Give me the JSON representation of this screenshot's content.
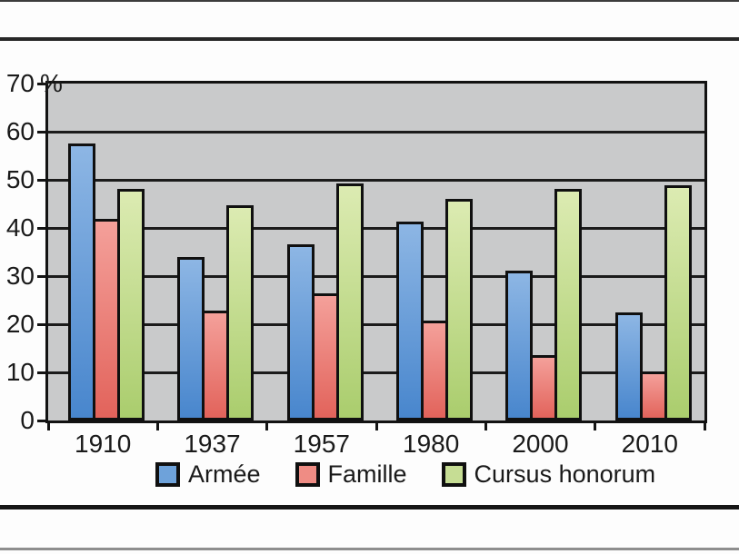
{
  "chart_data": {
    "type": "bar",
    "categories": [
      "1910",
      "1937",
      "1957",
      "1980",
      "2000",
      "2010"
    ],
    "series": [
      {
        "name": "Armée",
        "legend_fill": "#6ea2da",
        "fill_light": "#8db6e4",
        "fill_dark": "#4886cd",
        "values": [
          57.5,
          34.0,
          36.6,
          41.3,
          31.1,
          22.4
        ]
      },
      {
        "name": "Famille",
        "legend_fill": "#ef8c84",
        "fill_light": "#f4a09a",
        "fill_dark": "#e2635b",
        "values": [
          41.8,
          22.9,
          26.4,
          20.8,
          13.5,
          10.1
        ]
      },
      {
        "name": "Cursus honorum",
        "legend_fill": "#c6dd94",
        "fill_light": "#dcebb2",
        "fill_dark": "#aacd6d",
        "values": [
          48.1,
          44.8,
          49.3,
          46.1,
          48.1,
          48.9
        ]
      }
    ],
    "y_ticks": [
      {
        "v": 70,
        "label": "70",
        "suffix": "%"
      },
      {
        "v": 60,
        "label": "60"
      },
      {
        "v": 50,
        "label": "50"
      },
      {
        "v": 40,
        "label": "40"
      },
      {
        "v": 30,
        "label": "30"
      },
      {
        "v": 20,
        "label": "20"
      },
      {
        "v": 10,
        "label": "10"
      },
      {
        "v": 0,
        "label": "0"
      }
    ],
    "ylim": [
      0,
      70
    ],
    "grid": true,
    "legend_position": "bottom",
    "plot_bg": "#c9cacb",
    "gridline_color": "#1b1b1b",
    "bar_border_color": "#101010"
  }
}
